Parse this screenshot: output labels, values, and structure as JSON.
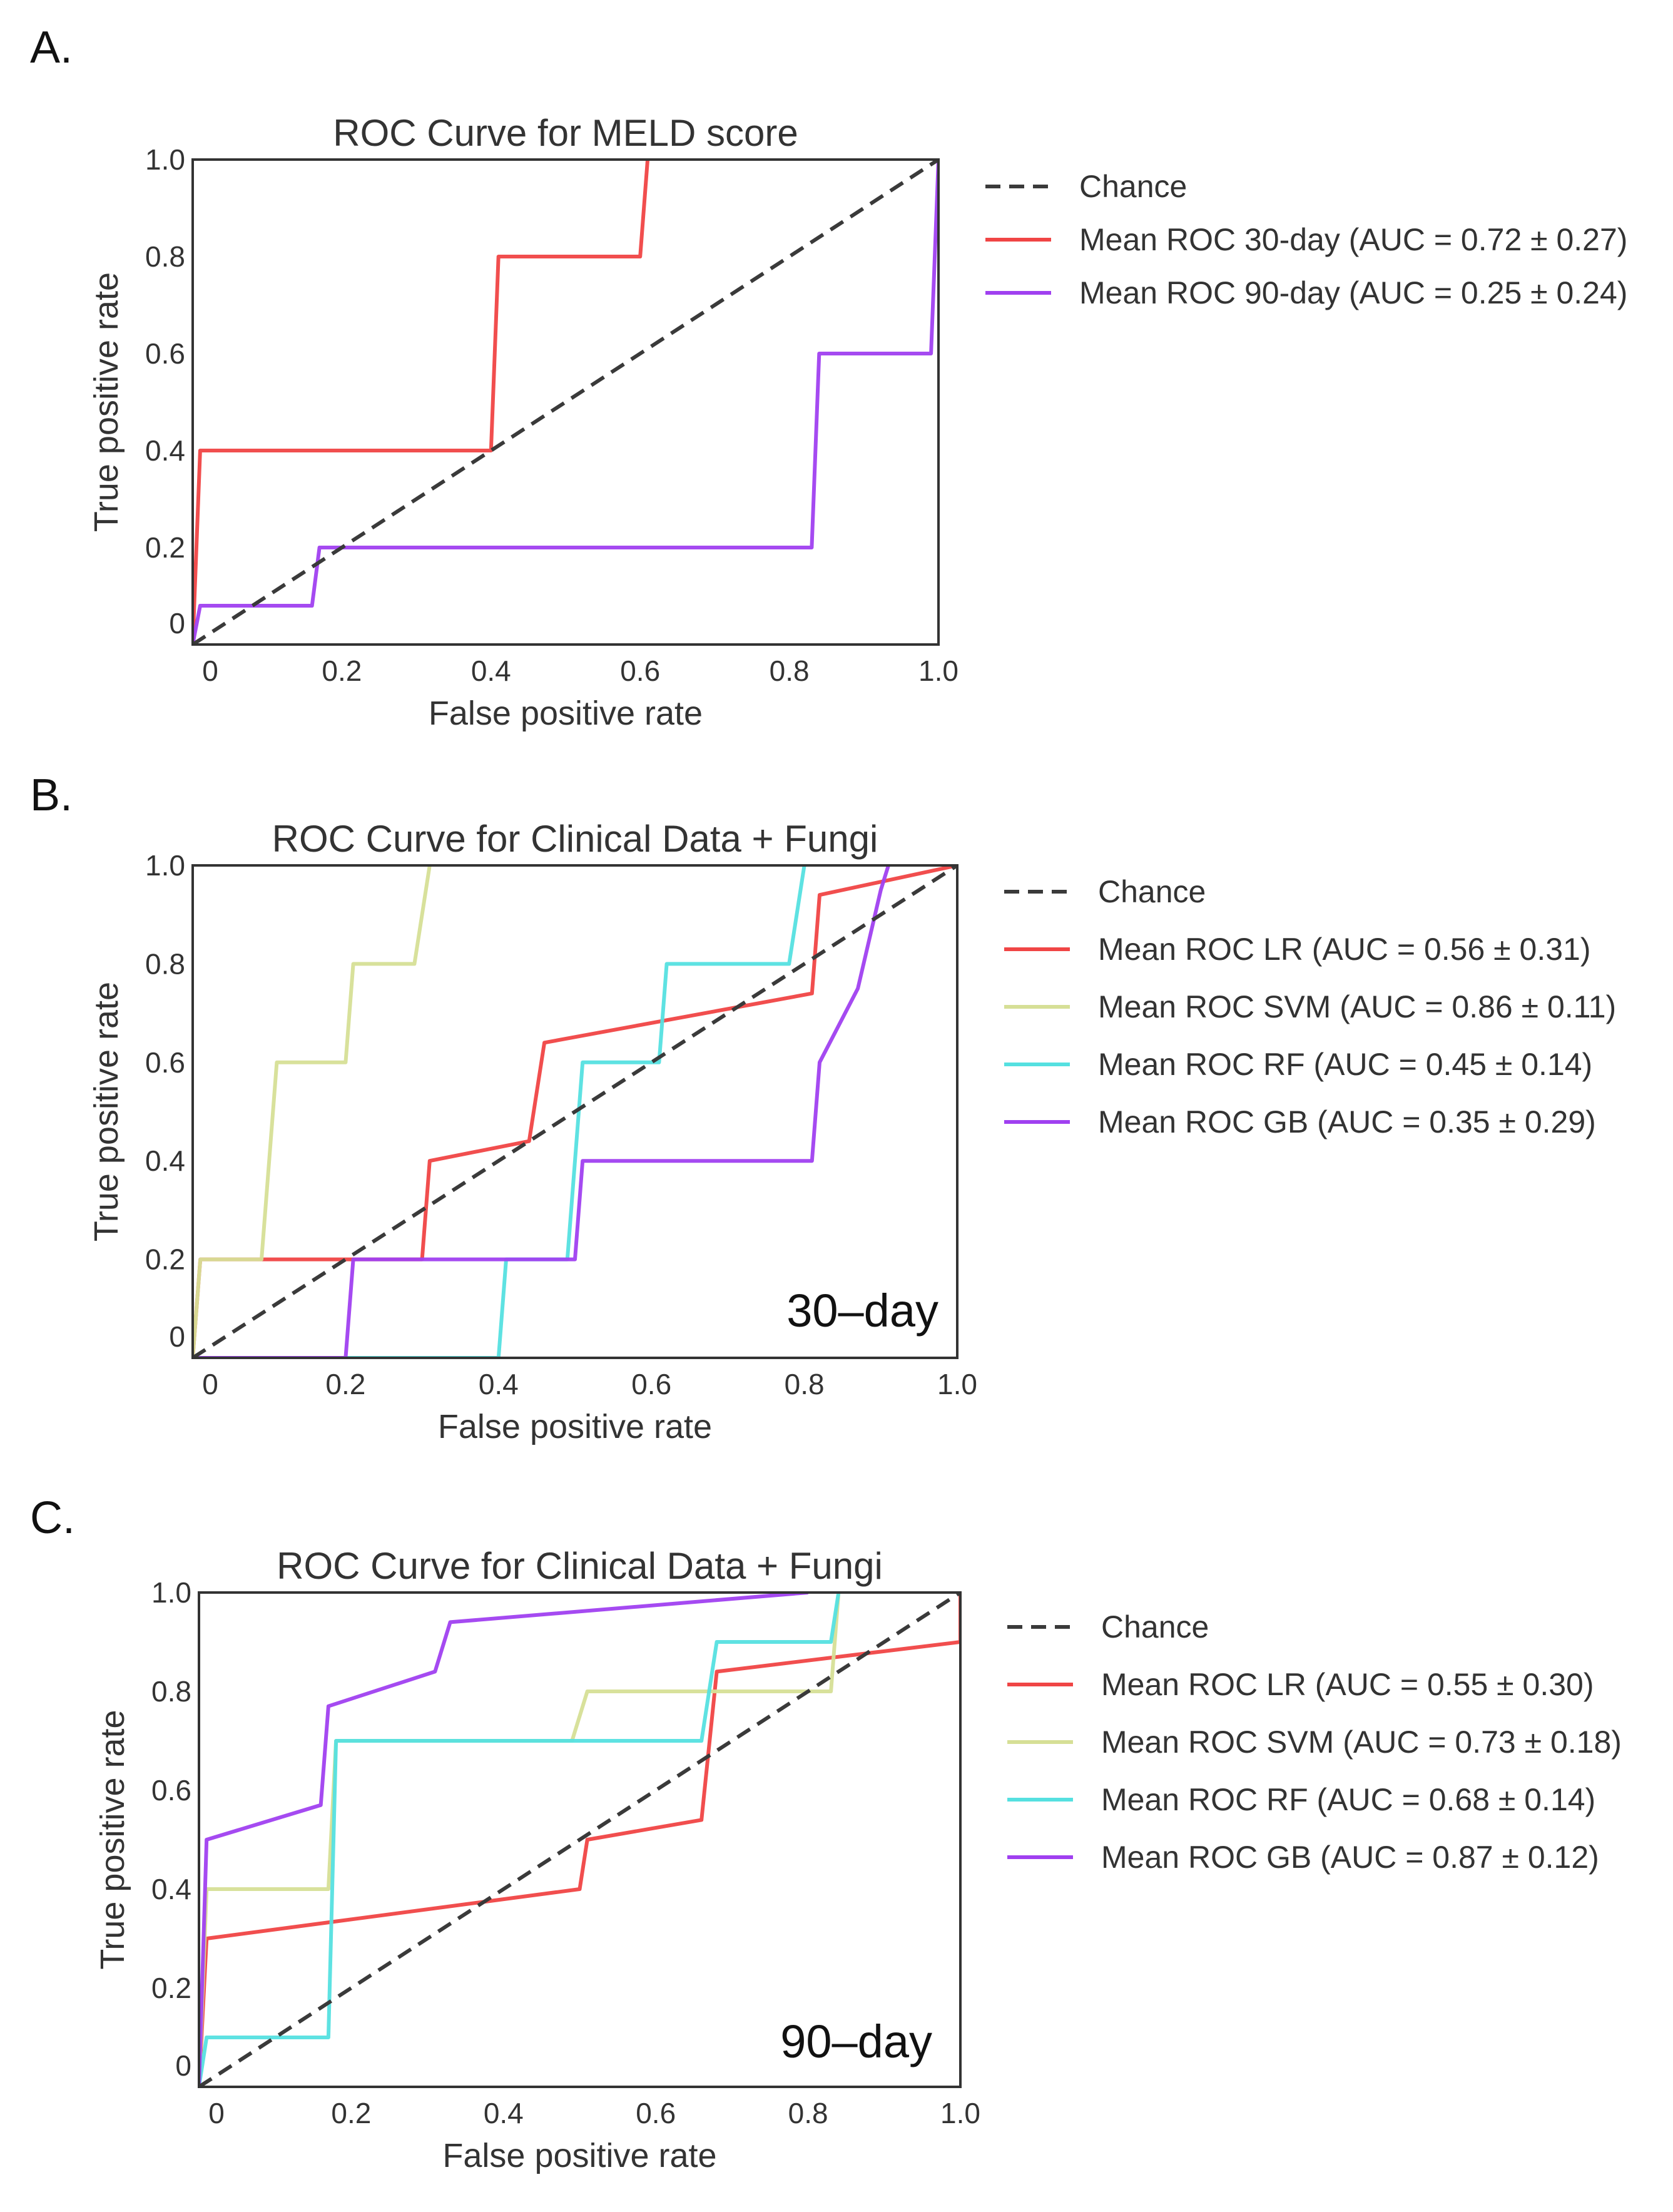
{
  "colors": {
    "chance": "#3a3a3a",
    "lr": "#f04545",
    "svm": "#d6df96",
    "rf": "#55e0e0",
    "gb": "#a040f0",
    "day30": "#f04545",
    "day90": "#a040f0"
  },
  "chart_data": [
    {
      "panel_label": "A.",
      "type": "line",
      "title": "ROC Curve for MELD score",
      "xlabel": "False positive rate",
      "ylabel": "True positive rate",
      "xlim": [
        0,
        1
      ],
      "ylim": [
        0,
        1
      ],
      "xtick_labels": [
        "0",
        "0.2",
        "0.4",
        "0.6",
        "0.8",
        "1.0"
      ],
      "ytick_labels": [
        "0",
        "0.2",
        "0.4",
        "0.6",
        "0.8",
        "1.0"
      ],
      "grid": false,
      "annotation": "",
      "legend_position": "outside-right",
      "series": [
        {
          "name": "Chance",
          "color_key": "chance",
          "dashed": true,
          "x": [
            0,
            1
          ],
          "y": [
            0,
            1
          ]
        },
        {
          "name": "Mean ROC 30-day  (AUC = 0.72 ± 0.27)",
          "color_key": "day30",
          "dashed": false,
          "x": [
            0,
            0.01,
            0.4,
            0.41,
            0.6,
            0.61
          ],
          "y": [
            0,
            0.4,
            0.4,
            0.8,
            0.8,
            1.0
          ]
        },
        {
          "name": "Mean ROC 90-day (AUC = 0.25 ± 0.24)",
          "color_key": "day90",
          "dashed": false,
          "x": [
            0,
            0.01,
            0.16,
            0.17,
            0.83,
            0.84,
            0.99,
            1.0
          ],
          "y": [
            0,
            0.08,
            0.08,
            0.2,
            0.2,
            0.6,
            0.6,
            1.0
          ]
        }
      ]
    },
    {
      "panel_label": "B.",
      "type": "line",
      "title": "ROC Curve for Clinical Data + Fungi",
      "xlabel": "False positive rate",
      "ylabel": "True positive rate",
      "xlim": [
        0,
        1
      ],
      "ylim": [
        0,
        1
      ],
      "xtick_labels": [
        "0",
        "0.2",
        "0.4",
        "0.6",
        "0.8",
        "1.0"
      ],
      "ytick_labels": [
        "0",
        "0.2",
        "0.4",
        "0.6",
        "0.8",
        "1.0"
      ],
      "grid": false,
      "annotation": "30–day",
      "legend_position": "outside-right",
      "series": [
        {
          "name": "Chance",
          "color_key": "chance",
          "dashed": true,
          "x": [
            0,
            1
          ],
          "y": [
            0,
            1
          ]
        },
        {
          "name": "Mean ROC LR (AUC = 0.56 ± 0.31)",
          "color_key": "lr",
          "dashed": false,
          "x": [
            0,
            0.01,
            0.3,
            0.31,
            0.44,
            0.46,
            0.81,
            0.82,
            1.0
          ],
          "y": [
            0,
            0.2,
            0.2,
            0.4,
            0.44,
            0.64,
            0.74,
            0.94,
            1.0
          ]
        },
        {
          "name": "Mean ROC SVM (AUC = 0.86 ± 0.11)",
          "color_key": "svm",
          "dashed": false,
          "x": [
            0,
            0.01,
            0.09,
            0.11,
            0.2,
            0.21,
            0.29,
            0.31
          ],
          "y": [
            0,
            0.2,
            0.2,
            0.6,
            0.6,
            0.8,
            0.8,
            1.0
          ]
        },
        {
          "name": "Mean ROC RF (AUC = 0.45 ± 0.14)",
          "color_key": "rf",
          "dashed": false,
          "x": [
            0,
            0.4,
            0.41,
            0.49,
            0.51,
            0.61,
            0.62,
            0.78,
            0.8
          ],
          "y": [
            0,
            0,
            0.2,
            0.2,
            0.6,
            0.6,
            0.8,
            0.8,
            1.0
          ]
        },
        {
          "name": "Mean ROC GB (AUC = 0.35 ± 0.29)",
          "color_key": "gb",
          "dashed": false,
          "x": [
            0,
            0.2,
            0.21,
            0.5,
            0.51,
            0.81,
            0.82,
            0.87,
            0.9,
            0.91
          ],
          "y": [
            0,
            0,
            0.2,
            0.2,
            0.4,
            0.4,
            0.6,
            0.75,
            0.95,
            1.0
          ]
        }
      ]
    },
    {
      "panel_label": "C.",
      "type": "line",
      "title": "ROC Curve for Clinical Data + Fungi",
      "xlabel": "False positive rate",
      "ylabel": "True positive rate",
      "xlim": [
        0,
        1
      ],
      "ylim": [
        0,
        1
      ],
      "xtick_labels": [
        "0",
        "0.2",
        "0.4",
        "0.6",
        "0.8",
        "1.0"
      ],
      "ytick_labels": [
        "0",
        "0.2",
        "0.4",
        "0.6",
        "0.8",
        "1.0"
      ],
      "grid": false,
      "annotation": "90–day",
      "legend_position": "outside-right",
      "series": [
        {
          "name": "Chance",
          "color_key": "chance",
          "dashed": true,
          "x": [
            0,
            1
          ],
          "y": [
            0,
            1
          ]
        },
        {
          "name": "Mean ROC LR (AUC = 0.55 ± 0.30)",
          "color_key": "lr",
          "dashed": false,
          "x": [
            0,
            0.01,
            0.5,
            0.51,
            0.66,
            0.68,
            1.0,
            1.0
          ],
          "y": [
            0,
            0.3,
            0.4,
            0.5,
            0.54,
            0.84,
            0.9,
            1.0
          ]
        },
        {
          "name": "Mean ROC SVM (AUC = 0.73 ± 0.18)",
          "color_key": "svm",
          "dashed": false,
          "x": [
            0,
            0.01,
            0.17,
            0.18,
            0.49,
            0.51,
            0.83,
            0.84
          ],
          "y": [
            0,
            0.4,
            0.4,
            0.7,
            0.7,
            0.8,
            0.8,
            1.0
          ]
        },
        {
          "name": "Mean ROC RF (AUC = 0.68 ± 0.14)",
          "color_key": "rf",
          "dashed": false,
          "x": [
            0,
            0.01,
            0.17,
            0.18,
            0.66,
            0.68,
            0.83,
            0.84
          ],
          "y": [
            0,
            0.1,
            0.1,
            0.7,
            0.7,
            0.9,
            0.9,
            1.0
          ]
        },
        {
          "name": "Mean ROC GB (AUC = 0.87 ± 0.12)",
          "color_key": "gb",
          "dashed": false,
          "x": [
            0,
            0.01,
            0.16,
            0.17,
            0.31,
            0.33,
            0.8
          ],
          "y": [
            0,
            0.5,
            0.57,
            0.77,
            0.84,
            0.94,
            1.0
          ]
        }
      ]
    }
  ]
}
